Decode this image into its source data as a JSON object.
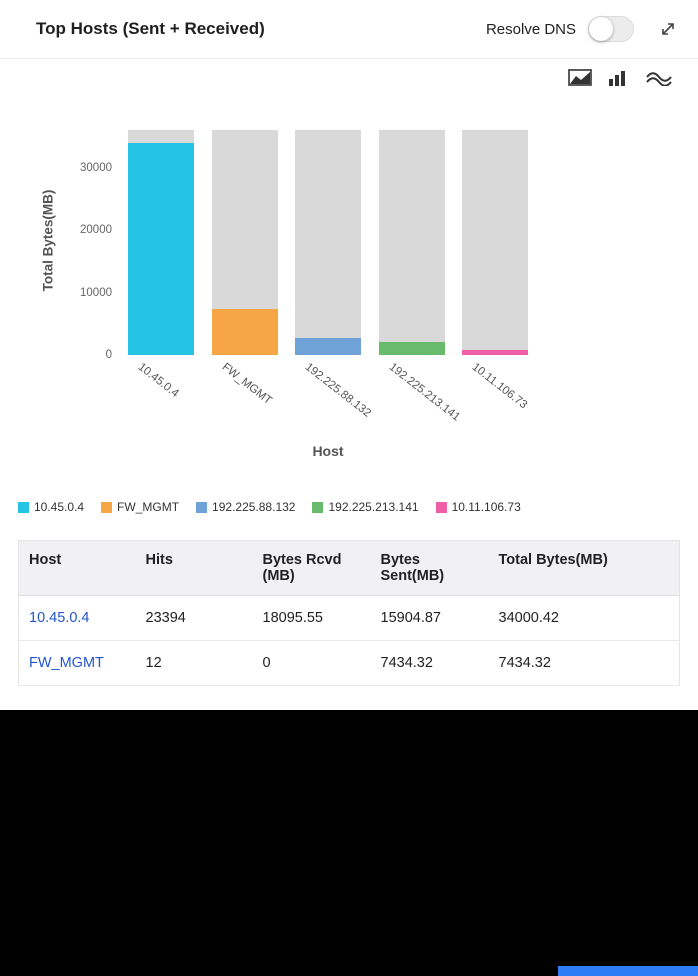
{
  "header": {
    "title": "Top Hosts (Sent + Received)",
    "resolve_dns_label": "Resolve DNS",
    "toggle_state": "off"
  },
  "toolbar": {
    "icons": [
      "area-chart-icon",
      "bar-chart-icon",
      "stream-chart-icon"
    ]
  },
  "chart_data": {
    "type": "bar",
    "title": "Top Hosts (Sent + Received)",
    "categories": [
      "10.45.0.4",
      "FW_MGMT",
      "192.225.88.132",
      "192.225.213.141",
      "10.11.106.73"
    ],
    "values": [
      34000.42,
      7434.32,
      2730,
      2090,
      800
    ],
    "colors": [
      "#25c3e4",
      "#f6a644",
      "#6fa3d8",
      "#67bb6a",
      "#ee5fa7"
    ],
    "track_color": "#d9d9d9",
    "xlabel": "Host",
    "ylabel": "Total Bytes(MB)",
    "ylim": [
      0,
      36000
    ],
    "yticks": [
      0,
      10000,
      20000,
      30000
    ],
    "grid": false,
    "legend_position": "bottom",
    "legend": [
      {
        "label": "10.45.0.4",
        "color": "#25c3e4"
      },
      {
        "label": "FW_MGMT",
        "color": "#f6a644"
      },
      {
        "label": "192.225.88.132",
        "color": "#6fa3d8"
      },
      {
        "label": "192.225.213.141",
        "color": "#67bb6a"
      },
      {
        "label": "10.11.106.73",
        "color": "#ee5fa7"
      }
    ]
  },
  "table": {
    "columns": [
      "Host",
      "Hits",
      "Bytes Rcvd (MB)",
      "Bytes Sent(MB)",
      "Total Bytes(MB)"
    ],
    "rows": [
      [
        "10.45.0.4",
        "23394",
        "18095.55",
        "15904.87",
        "34000.42"
      ],
      [
        "FW_MGMT",
        "12",
        "0",
        "7434.32",
        "7434.32"
      ]
    ],
    "link_color": "#2255cc"
  },
  "footer": {
    "strip_color": "#2e7cf6"
  }
}
